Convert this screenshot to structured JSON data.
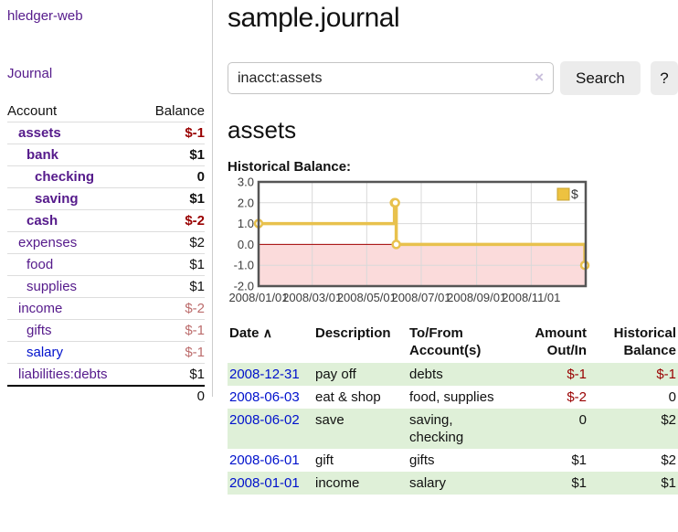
{
  "app": {
    "title": "hledger-web",
    "nav_journal": "Journal"
  },
  "sidebar": {
    "header": {
      "account": "Account",
      "balance": "Balance"
    },
    "accounts": [
      {
        "name": "assets",
        "balance": "$-1",
        "depth": 1,
        "in_query": true,
        "negative": true,
        "link": "purple"
      },
      {
        "name": "bank",
        "balance": "$1",
        "depth": 2,
        "in_query": true,
        "negative": false,
        "link": "purple"
      },
      {
        "name": "checking",
        "balance": "0",
        "depth": 3,
        "in_query": true,
        "negative": false,
        "link": "purple"
      },
      {
        "name": "saving",
        "balance": "$1",
        "depth": 3,
        "in_query": true,
        "negative": false,
        "link": "purple"
      },
      {
        "name": "cash",
        "balance": "$-2",
        "depth": 2,
        "in_query": true,
        "negative": true,
        "link": "purple"
      },
      {
        "name": "expenses",
        "balance": "$2",
        "depth": 1,
        "in_query": false,
        "negative": false,
        "link": "purple"
      },
      {
        "name": "food",
        "balance": "$1",
        "depth": 2,
        "in_query": false,
        "negative": false,
        "link": "purple"
      },
      {
        "name": "supplies",
        "balance": "$1",
        "depth": 2,
        "in_query": false,
        "negative": false,
        "link": "purple"
      },
      {
        "name": "income",
        "balance": "$-2",
        "depth": 1,
        "in_query": false,
        "negative": true,
        "link": "purple"
      },
      {
        "name": "gifts",
        "balance": "$-1",
        "depth": 2,
        "in_query": false,
        "negative": true,
        "link": "purple"
      },
      {
        "name": "salary",
        "balance": "$-1",
        "depth": 2,
        "in_query": false,
        "negative": true,
        "link": "blue"
      },
      {
        "name": "liabilities:debts",
        "balance": "$1",
        "depth": 1,
        "in_query": false,
        "negative": false,
        "link": "purple"
      }
    ],
    "total": "0"
  },
  "main": {
    "title": "sample.journal",
    "search": {
      "value": "inacct:assets",
      "placeholder": "",
      "clear_icon": "×",
      "button_label": "Search",
      "help_label": "?"
    },
    "account_heading": "assets",
    "chart_label": "Historical Balance:"
  },
  "chart_data": {
    "type": "line",
    "title": "Historical Balance:",
    "step": true,
    "series": [
      {
        "name": "$",
        "points": [
          [
            "2008-01-01",
            1
          ],
          [
            "2008-06-01",
            2
          ],
          [
            "2008-06-02",
            2
          ],
          [
            "2008-06-03",
            0
          ],
          [
            "2008-12-31",
            -1
          ]
        ]
      }
    ],
    "xlim": [
      "2008-01-01",
      "2009-01-01"
    ],
    "ylim": [
      -2,
      3
    ],
    "x_ticks": [
      {
        "date": "2008-01-01",
        "label": "2008/01/01"
      },
      {
        "date": "2008-03-01",
        "label": "2008/03/01"
      },
      {
        "date": "2008-05-01",
        "label": "2008/05/01"
      },
      {
        "date": "2008-07-01",
        "label": "2008/07/01"
      },
      {
        "date": "2008-09-01",
        "label": "2008/09/01"
      },
      {
        "date": "2008-11-01",
        "label": "2008/11/01"
      }
    ],
    "y_ticks": [
      {
        "v": 3,
        "label": "3.0"
      },
      {
        "v": 2,
        "label": "2.0"
      },
      {
        "v": 1,
        "label": "1.0"
      },
      {
        "v": 0,
        "label": "0.0"
      },
      {
        "v": -1,
        "label": "-1.0"
      },
      {
        "v": -2,
        "label": "-2.0"
      }
    ],
    "legend": {
      "label": "$",
      "position": "top-right"
    },
    "grid": true,
    "colors": {
      "line": "#e8c14d",
      "marker_fill": "#ffffff",
      "negative_fill": "#fbdbdb",
      "zero_line": "#a40000",
      "grid": "#d9d9d9",
      "border": "#555555",
      "legend_fill": "#edc240",
      "legend_border": "#c8a330"
    }
  },
  "register": {
    "columns": [
      "Date",
      "Description",
      "To/From Account(s)",
      "Amount Out/In",
      "Historical Balance"
    ],
    "sort_icon": "∧",
    "rows": [
      {
        "date": "2008-12-31",
        "description": "pay off",
        "accounts": "debts",
        "amount": "$-1",
        "amount_negative": true,
        "balance": "$-1",
        "balance_negative": true
      },
      {
        "date": "2008-06-03",
        "description": "eat & shop",
        "accounts": "food, supplies",
        "amount": "$-2",
        "amount_negative": true,
        "balance": "0",
        "balance_negative": false
      },
      {
        "date": "2008-06-02",
        "description": "save",
        "accounts": "saving, checking",
        "amount": "0",
        "amount_negative": false,
        "balance": "$2",
        "balance_negative": false
      },
      {
        "date": "2008-06-01",
        "description": "gift",
        "accounts": "gifts",
        "amount": "$1",
        "amount_negative": false,
        "balance": "$2",
        "balance_negative": false
      },
      {
        "date": "2008-01-01",
        "description": "income",
        "accounts": "salary",
        "amount": "$1",
        "amount_negative": false,
        "balance": "$1",
        "balance_negative": false
      }
    ]
  }
}
